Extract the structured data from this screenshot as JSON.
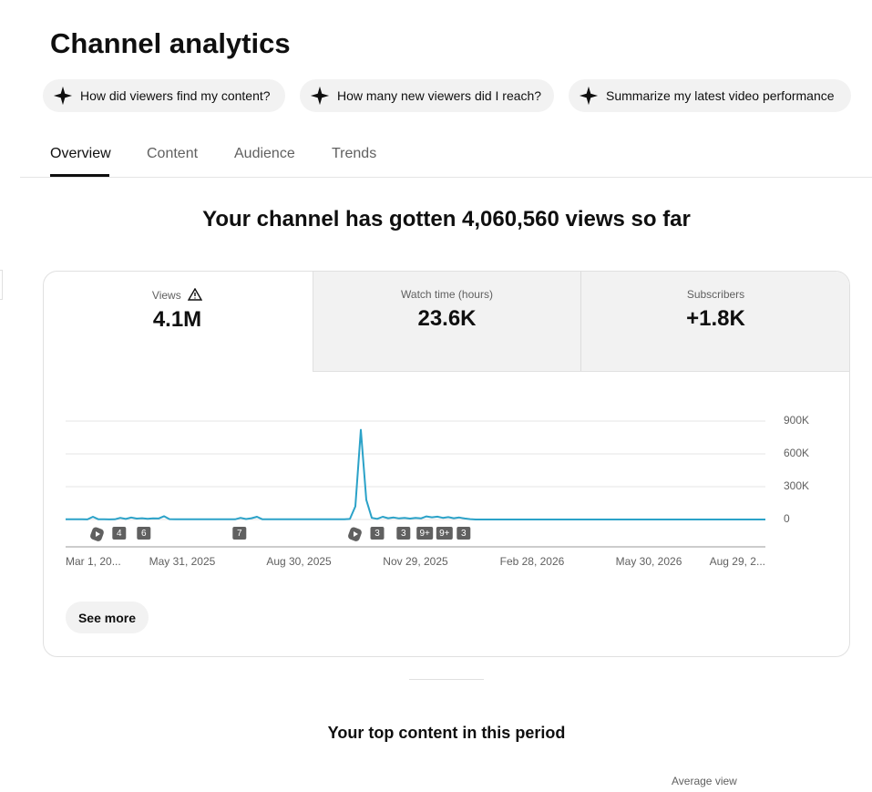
{
  "header": {
    "title": "Channel analytics"
  },
  "suggestions": [
    "How did viewers find my content?",
    "How many new viewers did I reach?",
    "Summarize my latest video performance"
  ],
  "tabs": [
    "Overview",
    "Content",
    "Audience",
    "Trends"
  ],
  "headline": "Your channel has gotten 4,060,560 views so far",
  "metrics": [
    {
      "label": "Views",
      "value": "4.1M"
    },
    {
      "label": "Watch time (hours)",
      "value": "23.6K"
    },
    {
      "label": "Subscribers",
      "value": "+1.8K"
    }
  ],
  "chart_data": {
    "type": "line",
    "color": "#2ba2c8",
    "grid": true,
    "ylim": [
      0,
      900000
    ],
    "yticks": [
      0,
      {
        "value": 300000,
        "label": "300K"
      },
      {
        "value": 600000,
        "label": "600K"
      },
      {
        "value": 900000,
        "label": "900K"
      }
    ],
    "xlim": [
      0,
      128
    ],
    "xticks": [
      {
        "value": 0,
        "label": "Mar 1, 20..."
      },
      {
        "value": 21.33,
        "label": "May 31, 2025"
      },
      {
        "value": 42.67,
        "label": "Aug 30, 2025"
      },
      {
        "value": 64,
        "label": "Nov 29, 2025"
      },
      {
        "value": 85.33,
        "label": "Feb 28, 2026"
      },
      {
        "value": 106.67,
        "label": "May 30, 2026"
      },
      {
        "value": 128,
        "label": "Aug 29, 2..."
      }
    ],
    "values": [
      2000,
      1500,
      2000,
      1500,
      1000,
      25000,
      1500,
      2000,
      1000,
      2000,
      15000,
      5000,
      18000,
      8000,
      12000,
      6000,
      10000,
      9000,
      30000,
      3000,
      1500,
      1500,
      1500,
      1500,
      1500,
      1500,
      1500,
      1500,
      1500,
      1500,
      1500,
      1500,
      15000,
      4000,
      12000,
      25000,
      2000,
      1500,
      1500,
      1500,
      1500,
      1500,
      1500,
      1500,
      1500,
      1500,
      1500,
      1500,
      1500,
      1500,
      1500,
      1500,
      5000,
      120000,
      820000,
      180000,
      15000,
      6000,
      25000,
      12000,
      18000,
      10000,
      14000,
      8000,
      15000,
      10000,
      28000,
      20000,
      26000,
      15000,
      22000,
      12000,
      18000,
      9000,
      3000,
      0,
      0,
      0,
      0,
      0,
      0,
      0,
      0,
      0,
      0,
      0,
      0,
      0,
      0,
      0,
      0,
      0,
      0,
      0,
      0,
      0,
      0,
      0,
      0,
      0,
      0,
      0,
      0,
      0,
      0,
      0,
      0,
      0,
      0,
      0,
      0,
      0,
      0,
      0,
      0,
      0,
      0,
      0,
      0,
      0,
      0,
      0,
      0,
      0,
      0,
      0,
      0,
      0,
      0
    ],
    "markers": [
      {
        "at": 9.8,
        "label": "4"
      },
      {
        "at": 14.3,
        "label": "6"
      },
      {
        "at": 31.8,
        "label": "7"
      },
      {
        "at": 57,
        "label": "3"
      },
      {
        "at": 61.8,
        "label": "3"
      },
      {
        "at": 65.7,
        "label": "9+"
      },
      {
        "at": 69.3,
        "label": "9+"
      },
      {
        "at": 72.8,
        "label": "3"
      }
    ]
  },
  "see_more": "See more",
  "top_content": {
    "title": "Your top content in this period",
    "column": "Average view"
  }
}
